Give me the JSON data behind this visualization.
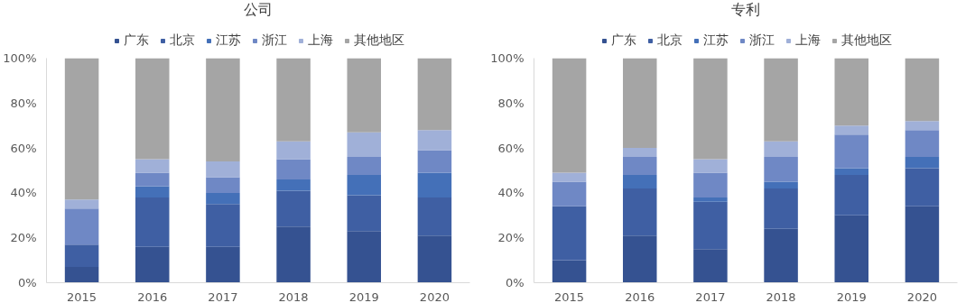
{
  "chart_data": [
    {
      "type": "bar",
      "title": "公司",
      "stacked": true,
      "categories": [
        "2015",
        "2016",
        "2017",
        "2018",
        "2019",
        "2020"
      ],
      "ylim": [
        0,
        100
      ],
      "yticks": [
        {
          "value": 0,
          "label": "0%"
        },
        {
          "value": 20,
          "label": "20%"
        },
        {
          "value": 40,
          "label": "40%"
        },
        {
          "value": 60,
          "label": "60%"
        },
        {
          "value": 80,
          "label": "80%"
        },
        {
          "value": 100,
          "label": "100%"
        }
      ],
      "grid": false,
      "legend": "top",
      "series": [
        {
          "name": "广东",
          "color": "#355291",
          "values": [
            7,
            16,
            16,
            25,
            23,
            21
          ]
        },
        {
          "name": "北京",
          "color": "#3f5fa3",
          "values": [
            10,
            22,
            19,
            16,
            16,
            17
          ]
        },
        {
          "name": "江苏",
          "color": "#4470b8",
          "values": [
            0,
            5,
            5,
            5,
            9,
            11
          ]
        },
        {
          "name": "浙江",
          "color": "#6f88c5",
          "values": [
            16,
            6,
            7,
            9,
            8,
            10
          ]
        },
        {
          "name": "上海",
          "color": "#a0b0d8",
          "values": [
            4,
            6,
            7,
            8,
            11,
            9
          ]
        },
        {
          "name": "其他地区",
          "color": "#a5a5a5",
          "values": [
            63,
            45,
            46,
            37,
            33,
            32
          ]
        }
      ]
    },
    {
      "type": "bar",
      "title": "专利",
      "stacked": true,
      "categories": [
        "2015",
        "2016",
        "2017",
        "2018",
        "2019",
        "2020"
      ],
      "ylim": [
        0,
        100
      ],
      "yticks": [
        {
          "value": 0,
          "label": "0%"
        },
        {
          "value": 20,
          "label": "20%"
        },
        {
          "value": 40,
          "label": "40%"
        },
        {
          "value": 60,
          "label": "60%"
        },
        {
          "value": 80,
          "label": "80%"
        },
        {
          "value": 100,
          "label": "100%"
        }
      ],
      "grid": false,
      "legend": "top",
      "series": [
        {
          "name": "广东",
          "color": "#355291",
          "values": [
            10,
            21,
            15,
            24,
            30,
            34
          ]
        },
        {
          "name": "北京",
          "color": "#3f5fa3",
          "values": [
            24,
            21,
            21,
            18,
            18,
            17
          ]
        },
        {
          "name": "江苏",
          "color": "#4470b8",
          "values": [
            0,
            6,
            2,
            3,
            3,
            5
          ]
        },
        {
          "name": "浙江",
          "color": "#6f88c5",
          "values": [
            11,
            8,
            11,
            11,
            15,
            12
          ]
        },
        {
          "name": "上海",
          "color": "#a0b0d8",
          "values": [
            4,
            4,
            6,
            7,
            4,
            4
          ]
        },
        {
          "name": "其他地区",
          "color": "#a5a5a5",
          "values": [
            51,
            40,
            45,
            37,
            30,
            28
          ]
        }
      ]
    }
  ]
}
